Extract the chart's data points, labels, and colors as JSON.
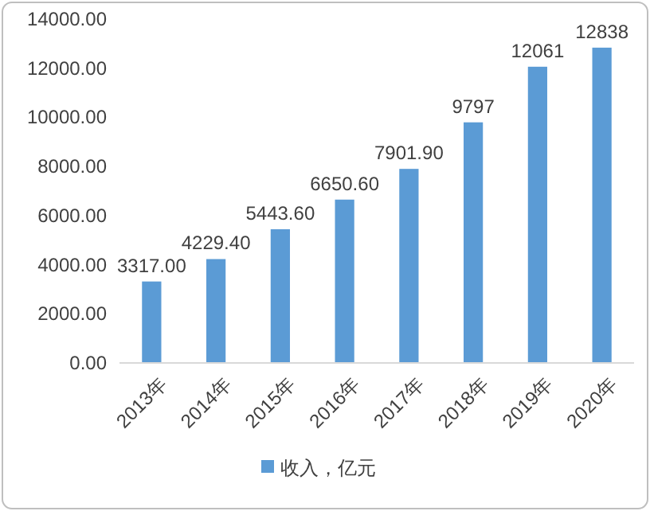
{
  "chart_data": {
    "type": "bar",
    "categories": [
      "2013年",
      "2014年",
      "2015年",
      "2016年",
      "2017年",
      "2018年",
      "2019年",
      "2020年"
    ],
    "series": [
      {
        "name": "收入，亿元",
        "color": "#5b9bd5",
        "values": [
          3317.0,
          4229.4,
          5443.6,
          6650.6,
          7901.9,
          9797,
          12061,
          12838
        ],
        "value_labels": [
          "3317.00",
          "4229.40",
          "5443.60",
          "6650.60",
          "7901.90",
          "9797",
          "12061",
          "12838"
        ]
      }
    ],
    "ylim": [
      0,
      14000
    ],
    "yticks": [
      {
        "value": 0,
        "label": "0.00"
      },
      {
        "value": 2000,
        "label": "2000.00"
      },
      {
        "value": 4000,
        "label": "4000.00"
      },
      {
        "value": 6000,
        "label": "6000.00"
      },
      {
        "value": 8000,
        "label": "8000.00"
      },
      {
        "value": 10000,
        "label": "10000.00"
      },
      {
        "value": 12000,
        "label": "12000.00"
      },
      {
        "value": 14000,
        "label": "14000.00"
      }
    ],
    "grid": false,
    "legend": "bottom"
  }
}
